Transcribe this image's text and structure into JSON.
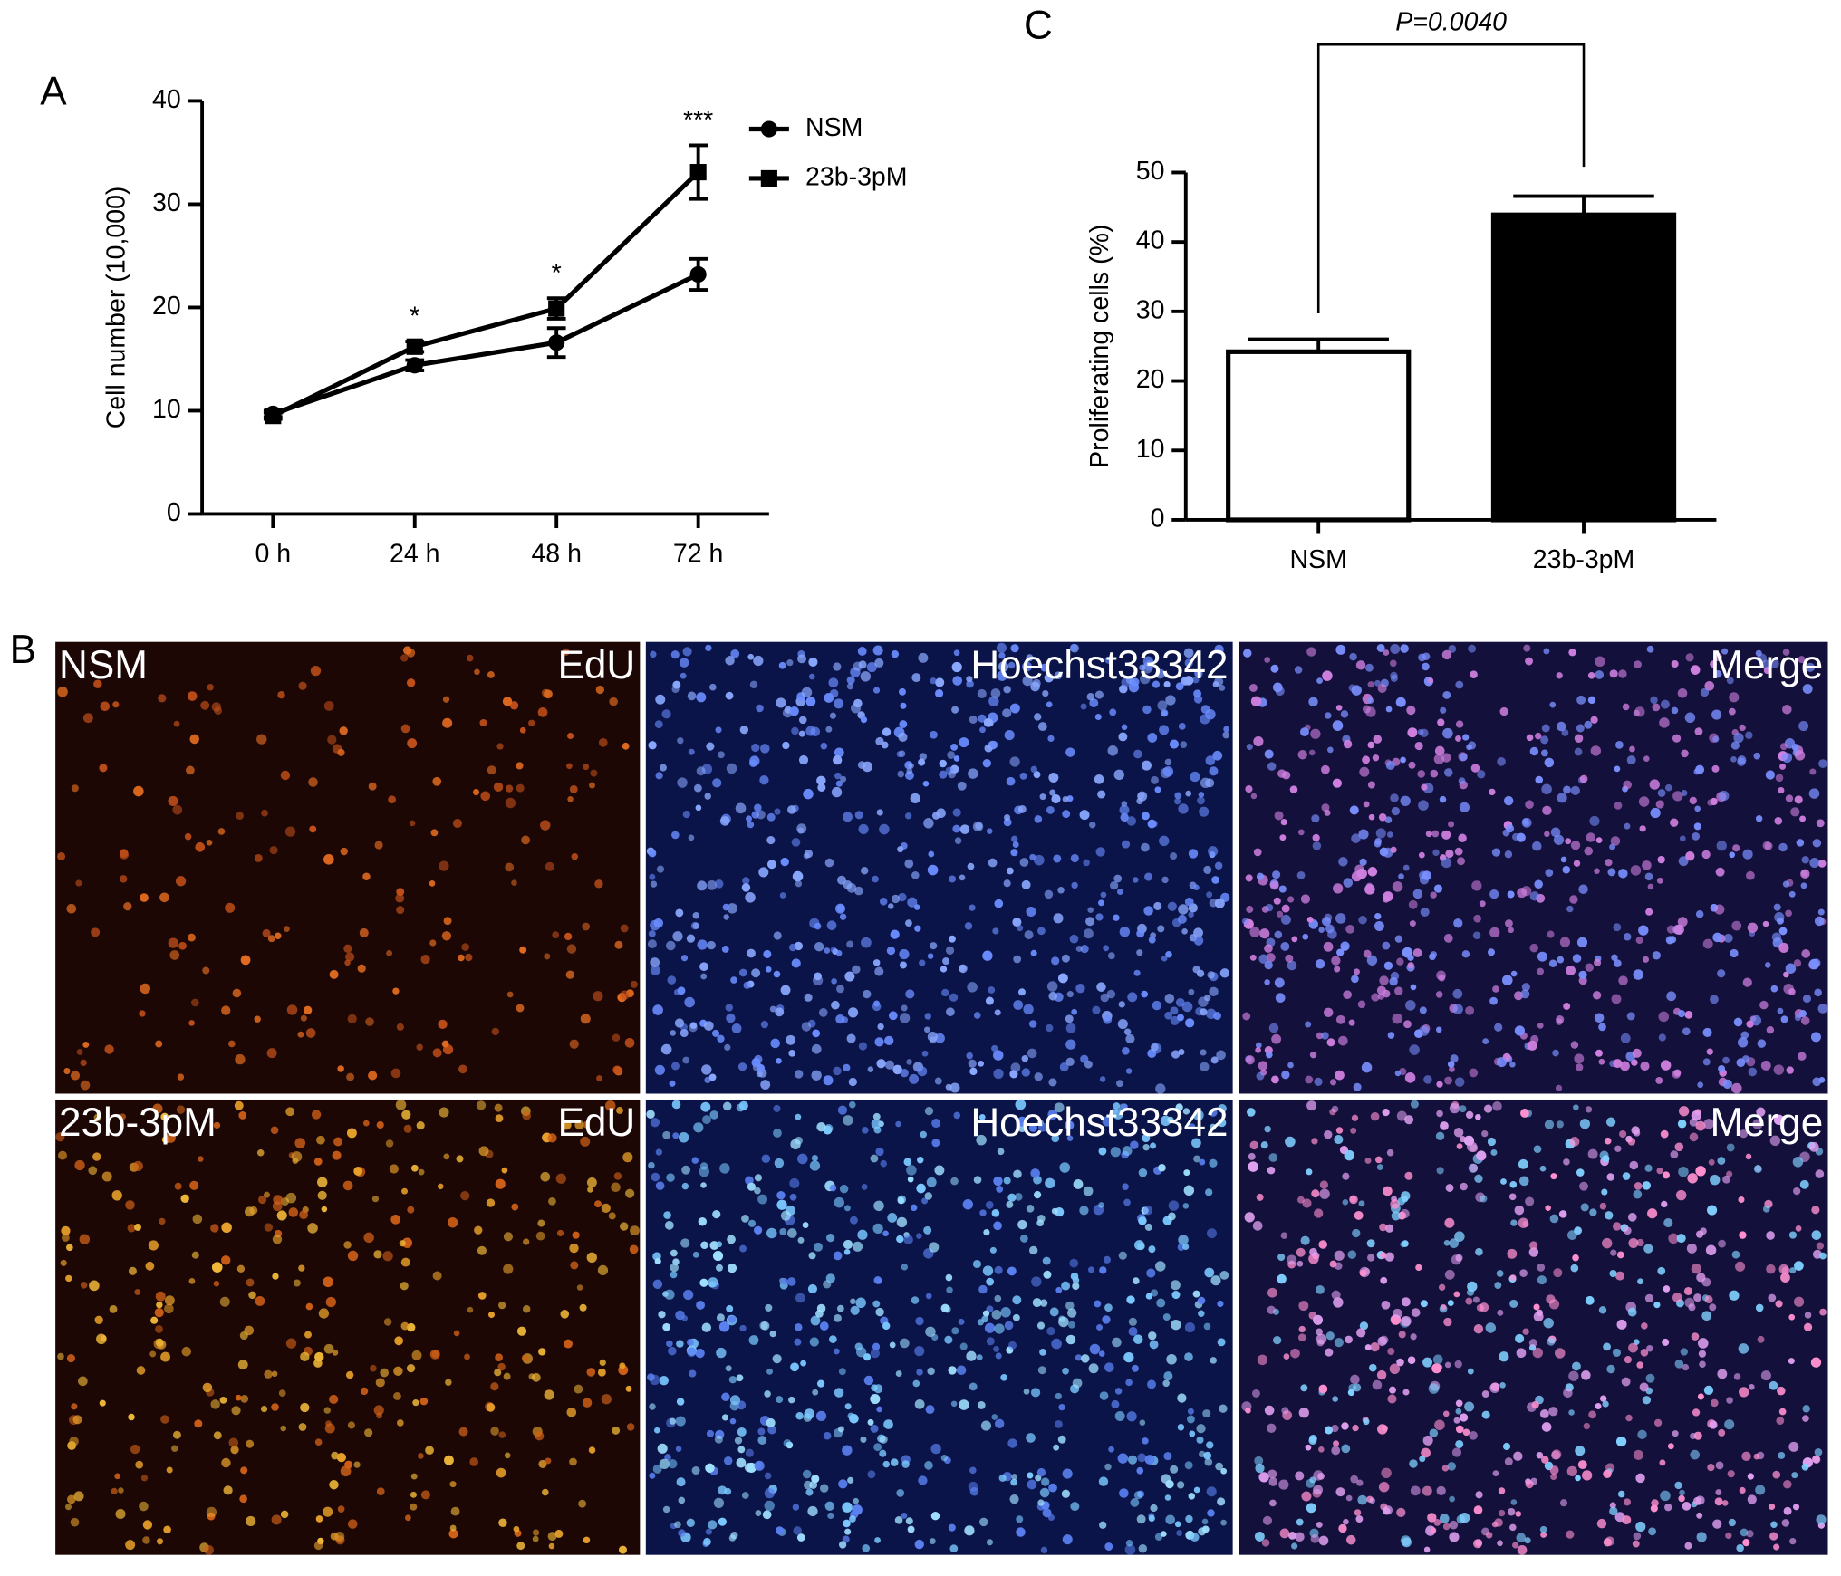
{
  "panel_labels": {
    "a": "A",
    "b": "B",
    "c": "C"
  },
  "chart_data": [
    {
      "type": "line",
      "ylabel": "Cell number (10,000)",
      "categories": [
        "0 h",
        "24 h",
        "48 h",
        "72 h"
      ],
      "series": [
        {
          "name": "NSM",
          "color": "#000000",
          "marker": "circle",
          "values": [
            9.7,
            14.4,
            16.6,
            23.2
          ],
          "errors": [
            0.3,
            0.5,
            1.4,
            1.5
          ]
        },
        {
          "name": "23b-3pM",
          "color": "#000000",
          "marker": "square",
          "values": [
            9.5,
            16.2,
            19.9,
            33.1
          ],
          "errors": [
            0.3,
            0.5,
            1.0,
            2.6
          ]
        }
      ],
      "significance": [
        null,
        "*",
        "*",
        "***"
      ],
      "ylim": [
        0,
        40
      ],
      "yticks": [
        0,
        10,
        20,
        30,
        40
      ],
      "legend": "upper-right"
    },
    {
      "type": "bar",
      "ylabel": "Proliferating cells (%)",
      "categories": [
        "NSM",
        "23b-3pM"
      ],
      "values": [
        24.2,
        43.9
      ],
      "errors": [
        1.8,
        2.7
      ],
      "colors": [
        "#ffffff",
        "#000000"
      ],
      "annotation": "P=0.0040",
      "ylim": [
        0,
        50
      ],
      "yticks": [
        0,
        10,
        20,
        30,
        40,
        50
      ]
    }
  ],
  "images": {
    "rows": [
      {
        "label": "NSM",
        "panels": [
          "EdU",
          "Hoechst33342",
          "Merge"
        ]
      },
      {
        "label": "23b-3pM",
        "panels": [
          "EdU",
          "Hoechst33342",
          "Merge"
        ]
      }
    ]
  }
}
